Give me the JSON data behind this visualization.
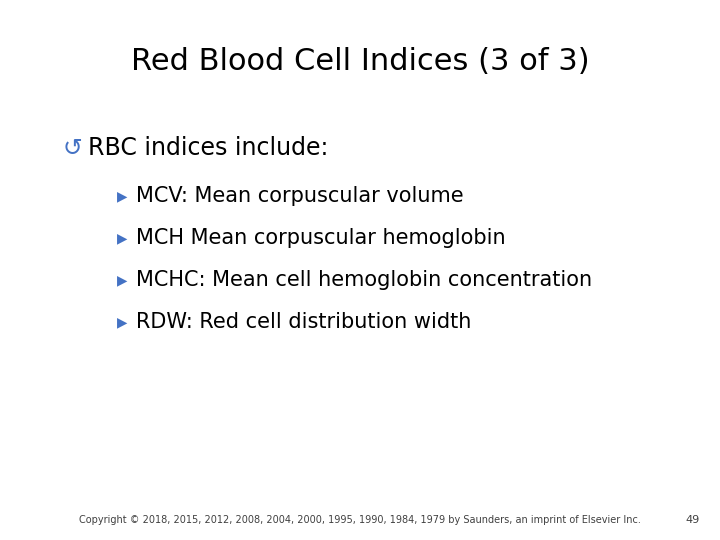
{
  "title": "Red Blood Cell Indices (3 of 3)",
  "title_fontsize": 22,
  "title_color": "#000000",
  "background_color": "#ffffff",
  "bullet1_text": "RBC indices include:",
  "bullet1_fontsize": 17,
  "bullet1_color": "#000000",
  "bullet1_symbol": "↺",
  "bullet1_symbol_color": "#4472c4",
  "sub_bullets": [
    "MCV: Mean corpuscular volume",
    "MCH Mean corpuscular hemoglobin",
    "MCHC: Mean cell hemoglobin concentration",
    "RDW: Red cell distribution width"
  ],
  "sub_bullet_fontsize": 15,
  "sub_bullet_color": "#000000",
  "sub_bullet_symbol": "▶",
  "sub_bullet_symbol_color": "#4472c4",
  "copyright_text": "Copyright © 2018, 2015, 2012, 2008, 2004, 2000, 1995, 1990, 1984, 1979 by Saunders, an imprint of Elsevier Inc.",
  "copyright_fontsize": 7,
  "copyright_color": "#404040",
  "page_number": "49",
  "page_number_fontsize": 8,
  "page_number_color": "#404040"
}
